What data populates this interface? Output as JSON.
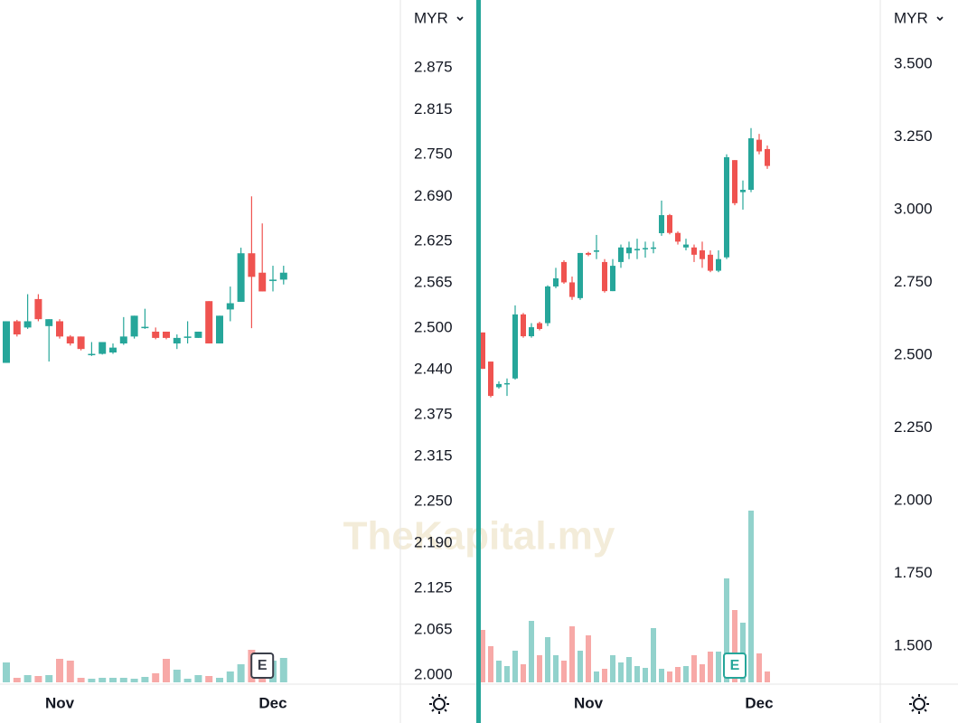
{
  "watermark": "TheKapital.my",
  "chart_data": [
    {
      "type": "candlestick",
      "currency": "MYR",
      "categories": [
        null,
        null,
        null,
        null,
        null,
        "Nov",
        null,
        null,
        null,
        null,
        null,
        null,
        null,
        null,
        null,
        null,
        null,
        null,
        null,
        null,
        null,
        null,
        null,
        null,
        null,
        "Dec",
        null
      ],
      "open": [
        2.45,
        2.51,
        2.501,
        2.542,
        2.503,
        2.51,
        2.488,
        2.488,
        2.463,
        2.463,
        2.465,
        2.478,
        2.488,
        2.502,
        2.495,
        2.495,
        2.478,
        2.486,
        2.486,
        2.539,
        2.478,
        2.527,
        2.538,
        2.608,
        2.58,
        2.568,
        2.57
      ],
      "high": [
        2.51,
        2.512,
        2.549,
        2.549,
        2.513,
        2.513,
        2.49,
        2.488,
        2.48,
        2.48,
        2.478,
        2.516,
        2.518,
        2.528,
        2.501,
        2.495,
        2.491,
        2.51,
        2.495,
        2.539,
        2.518,
        2.56,
        2.616,
        2.69,
        2.651,
        2.59,
        2.59
      ],
      "low": [
        2.45,
        2.488,
        2.499,
        2.51,
        2.452,
        2.485,
        2.475,
        2.468,
        2.46,
        2.462,
        2.463,
        2.476,
        2.485,
        2.499,
        2.484,
        2.484,
        2.47,
        2.478,
        2.486,
        2.478,
        2.478,
        2.51,
        2.538,
        2.5,
        2.553,
        2.553,
        2.563
      ],
      "close": [
        2.51,
        2.491,
        2.51,
        2.513,
        2.513,
        2.488,
        2.478,
        2.47,
        2.463,
        2.48,
        2.472,
        2.488,
        2.518,
        2.502,
        2.486,
        2.486,
        2.486,
        2.488,
        2.495,
        2.478,
        2.518,
        2.536,
        2.608,
        2.574,
        2.553,
        2.57,
        2.58
      ],
      "volume": [
        22,
        5,
        8,
        7,
        8,
        26,
        24,
        5,
        4,
        5,
        5,
        5,
        4,
        6,
        10,
        26,
        14,
        4,
        8,
        7,
        5,
        12,
        20,
        36,
        30,
        24,
        27
      ],
      "ylim": [
        1.987,
        2.973
      ],
      "yticks": [
        2.875,
        2.815,
        {
          "value": 2.75,
          "label": "2.750"
        },
        {
          "value": 2.69,
          "label": "2.690"
        },
        2.625,
        2.565,
        {
          "value": 2.5,
          "label": "2.500"
        },
        {
          "value": 2.44,
          "label": "2.440"
        },
        2.375,
        2.315,
        {
          "value": 2.25,
          "label": "2.250"
        },
        {
          "value": 2.19,
          "label": "2.190"
        },
        2.125,
        2.065,
        {
          "value": 2,
          "label": "2.000"
        }
      ],
      "colors": {
        "up": "#26a69a",
        "down": "#ef5350"
      },
      "marker": {
        "index": 24,
        "label": "E",
        "color": "#3b3f4a"
      }
    },
    {
      "type": "candlestick",
      "currency": "MYR",
      "categories": [
        null,
        null,
        null,
        null,
        null,
        null,
        null,
        null,
        null,
        null,
        null,
        null,
        null,
        "Nov",
        null,
        null,
        null,
        null,
        null,
        null,
        null,
        null,
        null,
        null,
        null,
        null,
        null,
        null,
        null,
        null,
        null,
        null,
        null,
        null,
        "Dec",
        null
      ],
      "open": [
        2.578,
        2.478,
        2.39,
        2.401,
        2.42,
        2.64,
        2.565,
        2.61,
        2.61,
        2.736,
        2.82,
        2.75,
        2.696,
        2.851,
        2.855,
        2.82,
        2.72,
        2.82,
        2.85,
        2.86,
        2.865,
        2.868,
        2.919,
        2.981,
        2.92,
        2.87,
        2.87,
        2.86,
        2.845,
        2.79,
        2.836,
        3.17,
        3.06,
        3.068,
        3.24,
        3.208
      ],
      "high": [
        2.578,
        2.478,
        2.41,
        2.42,
        2.671,
        2.645,
        2.61,
        2.615,
        2.74,
        2.8,
        2.826,
        2.77,
        2.851,
        2.855,
        2.913,
        2.83,
        2.83,
        2.88,
        2.89,
        2.9,
        2.89,
        2.89,
        3.031,
        2.985,
        2.925,
        2.9,
        2.88,
        2.89,
        2.86,
        2.86,
        3.19,
        3.17,
        3.1,
        3.28,
        3.26,
        3.22
      ],
      "low": [
        2.453,
        2.355,
        2.385,
        2.36,
        2.416,
        2.56,
        2.56,
        2.585,
        2.6,
        2.73,
        2.745,
        2.69,
        2.69,
        2.84,
        2.83,
        2.715,
        2.72,
        2.8,
        2.83,
        2.83,
        2.835,
        2.85,
        2.91,
        2.915,
        2.88,
        2.86,
        2.82,
        2.8,
        2.785,
        2.785,
        2.83,
        3.015,
        3.0,
        3.06,
        3.19,
        3.14
      ],
      "close": [
        2.453,
        2.36,
        2.401,
        2.404,
        2.64,
        2.565,
        2.596,
        2.59,
        2.736,
        2.764,
        2.75,
        2.7,
        2.851,
        2.845,
        2.86,
        2.72,
        2.807,
        2.87,
        2.87,
        2.865,
        2.868,
        2.87,
        2.981,
        2.92,
        2.89,
        2.88,
        2.845,
        2.83,
        2.79,
        2.83,
        3.18,
        3.022,
        3.068,
        3.245,
        3.2,
        3.15
      ],
      "volume": [
        58,
        40,
        24,
        18,
        35,
        20,
        68,
        30,
        50,
        30,
        24,
        62,
        35,
        52,
        12,
        15,
        30,
        22,
        28,
        18,
        16,
        60,
        15,
        12,
        17,
        18,
        30,
        20,
        34,
        34,
        115,
        80,
        66,
        190,
        32,
        12
      ],
      "ylim": [
        1.37,
        3.72
      ],
      "yticks": [
        {
          "value": 3.5,
          "label": "3.500"
        },
        {
          "value": 3.25,
          "label": "3.250"
        },
        {
          "value": 3,
          "label": "3.000"
        },
        {
          "value": 2.75,
          "label": "2.750"
        },
        {
          "value": 2.5,
          "label": "2.500"
        },
        {
          "value": 2.25,
          "label": "2.250"
        },
        {
          "value": 2,
          "label": "2.000"
        },
        {
          "value": 1.75,
          "label": "1.750"
        },
        {
          "value": 1.5,
          "label": "1.500"
        }
      ],
      "colors": {
        "up": "#26a69a",
        "down": "#ef5350"
      },
      "marker": {
        "index": 31,
        "label": "E",
        "color": "#26a69a"
      }
    }
  ]
}
